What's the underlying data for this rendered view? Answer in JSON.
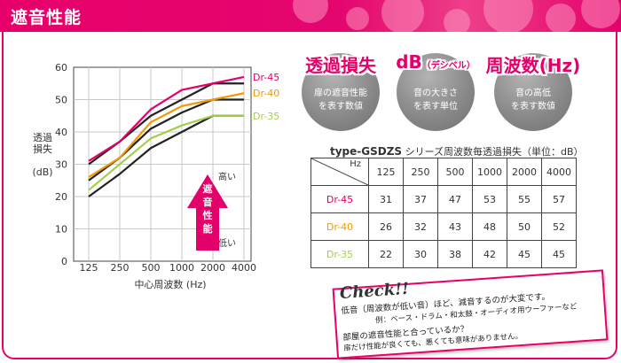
{
  "header": {
    "title": "遮音性能"
  },
  "circles": [
    {
      "title": "透過損失",
      "note": "",
      "desc1": "扉の遮音性能",
      "desc2": "を表す数値"
    },
    {
      "title": "dB",
      "note": "（デシベル）",
      "desc1": "音の大きさ",
      "desc2": "を表す単位"
    },
    {
      "title": "周波数(Hz)",
      "note": "",
      "desc1": "音の高低",
      "desc2": "を表す数値"
    }
  ],
  "table": {
    "title_bold": "type-GSDZS",
    "title_rest": " シリーズ周波数毎透過損失（単位：dB）",
    "corner": "Hz",
    "headers": [
      "125",
      "250",
      "500",
      "1000",
      "2000",
      "4000"
    ],
    "rows": [
      {
        "label": "Dr-45",
        "color": "#e4006a",
        "values": [
          "31",
          "37",
          "47",
          "53",
          "55",
          "57"
        ]
      },
      {
        "label": "Dr-40",
        "color": "#f39800",
        "values": [
          "26",
          "32",
          "43",
          "48",
          "50",
          "52"
        ]
      },
      {
        "label": "Dr-35",
        "color": "#a5cf4c",
        "values": [
          "22",
          "30",
          "38",
          "42",
          "45",
          "45"
        ]
      }
    ]
  },
  "check": {
    "label": "Check!!",
    "line1": "低音（周波数が低い音）ほど、減音するのが大変です。",
    "line2": "例：ベース・ドラム・和太鼓・オーディオ用ウーファーなど",
    "line3": "部屋の遮音性能と合っているか？",
    "line4": "扉だけ性能が良くても、悪くても意味がありません。"
  },
  "arrow": {
    "label": "遮音性能",
    "high": "高い",
    "low": "低い"
  },
  "colors": {
    "brand": "#e4006a",
    "dr45": "#e4006a",
    "dr40": "#f39800",
    "dr35": "#a5cf4c",
    "black": "#222222"
  },
  "chart_data": {
    "type": "line",
    "x": [
      "125",
      "250",
      "500",
      "1000",
      "2000",
      "4000"
    ],
    "xlabel": "中心周波数 (Hz)",
    "ylabel": "透過損失 (dB)",
    "ylim": [
      0,
      60
    ],
    "yticks": [
      0,
      10,
      20,
      30,
      40,
      50,
      60
    ],
    "grid": true,
    "series": [
      {
        "name": "Dr-45",
        "color": "#e4006a",
        "values": [
          31,
          37,
          47,
          53,
          55,
          57
        ]
      },
      {
        "name": "Dr-40",
        "color": "#f39800",
        "values": [
          26,
          32,
          43,
          48,
          50,
          52
        ]
      },
      {
        "name": "Dr-35",
        "color": "#a5cf4c",
        "values": [
          22,
          30,
          38,
          42,
          45,
          45
        ]
      },
      {
        "name": "",
        "color": "#222222",
        "values": [
          30,
          37,
          45,
          50,
          55,
          55
        ]
      },
      {
        "name": "",
        "color": "#222222",
        "values": [
          25,
          32,
          41,
          46,
          50,
          50
        ]
      },
      {
        "name": "",
        "color": "#222222",
        "values": [
          20,
          27,
          35,
          40,
          45,
          45
        ]
      }
    ]
  }
}
